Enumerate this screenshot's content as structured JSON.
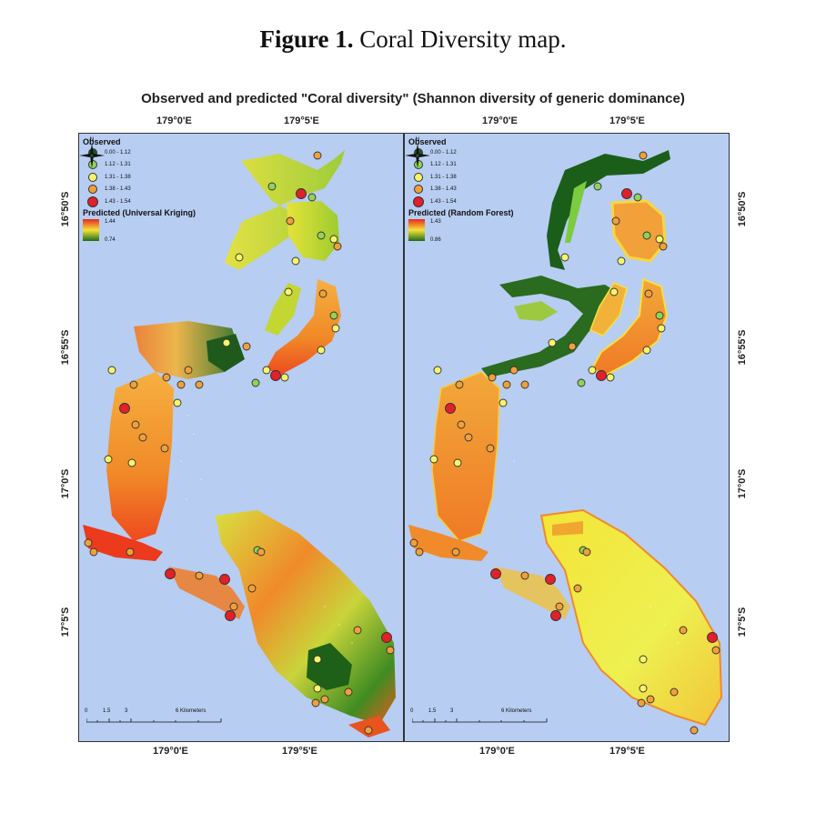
{
  "caption": {
    "bold": "Figure 1.",
    "rest": " Coral Diversity map."
  },
  "title": "Observed and predicted \"Coral diversity\" (Shannon diversity of generic dominance)",
  "axes": {
    "lon_top": [
      "179°0'E",
      "179°5'E",
      "179°0'E",
      "179°5'E"
    ],
    "lon_bottom": [
      "179°0'E",
      "179°5'E",
      "179°0'E",
      "179°5'E"
    ],
    "lat_left": [
      "16°50'S",
      "16°55'S",
      "17°0'S",
      "17°5'S"
    ],
    "lat_right": [
      "16°50'S",
      "16°55'S",
      "17°0'S",
      "17°5'S"
    ]
  },
  "legend": {
    "observed_title": "Observed",
    "classes": [
      {
        "label": "0.00 - 1.12",
        "color": "#1f5a24"
      },
      {
        "label": "1.12 - 1.31",
        "color": "#8fd357"
      },
      {
        "label": "1.31 - 1.38",
        "color": "#f7f46a"
      },
      {
        "label": "1.38 - 1.43",
        "color": "#f0a03a"
      },
      {
        "label": "1.43 - 1.54",
        "color": "#e0202a"
      }
    ]
  },
  "left_panel": {
    "pred_title": "Predicted (Universal Kriging)",
    "high": "1.44",
    "low": "0.74"
  },
  "right_panel": {
    "pred_title": "Predicted (Random Forest)",
    "high": "1.43",
    "low": "0.86"
  },
  "scale": {
    "ticks": [
      "0",
      "1.5",
      "3",
      "6 Kilometers"
    ]
  },
  "north_label": "N",
  "colors": {
    "water": "#b7cdf2",
    "high": "#e8291c",
    "mid": "#f5e23a",
    "low": "#1e6b1a"
  }
}
